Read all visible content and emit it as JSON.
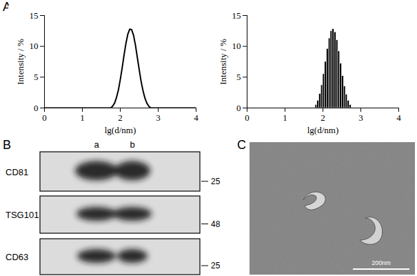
{
  "panel_labels": [
    "A",
    "B",
    "C"
  ],
  "chart_data": [
    {
      "type": "line",
      "xlabel": "lg(d/nm)",
      "ylabel": "Intensity / %",
      "color": "#000000",
      "x": [
        0,
        1.7,
        1.75,
        1.8,
        1.85,
        1.9,
        1.95,
        2.0,
        2.05,
        2.1,
        2.15,
        2.2,
        2.25,
        2.3,
        2.35,
        2.4,
        2.45,
        2.5,
        2.55,
        2.6,
        2.65,
        2.7,
        2.75,
        2.8,
        4
      ],
      "values": [
        0,
        0,
        0,
        0.3,
        0.8,
        1.7,
        2.9,
        4.6,
        6.5,
        8.6,
        10.5,
        12.0,
        12.8,
        12.7,
        11.8,
        10.2,
        8.2,
        6.2,
        4.3,
        2.8,
        1.6,
        0.8,
        0.3,
        0,
        0
      ],
      "xlim": [
        0,
        4
      ],
      "xticks": [
        0,
        1,
        2,
        3,
        4
      ],
      "ylim": [
        0,
        15
      ],
      "yticks": [
        0,
        5,
        10,
        15
      ]
    },
    {
      "type": "histogram",
      "xlabel": "lg(d/nm)",
      "ylabel": "Intensity / %",
      "color": "#000000",
      "bins": [
        1.8,
        1.85,
        1.9,
        1.95,
        2.0,
        2.05,
        2.1,
        2.15,
        2.2,
        2.25,
        2.3,
        2.35,
        2.4,
        2.45,
        2.5,
        2.55,
        2.6,
        2.65,
        2.7,
        2.75
      ],
      "values": [
        0.5,
        1.2,
        2.3,
        3.7,
        5.5,
        7.5,
        9.6,
        11.3,
        12.5,
        12.8,
        12.3,
        11.0,
        9.2,
        7.2,
        5.2,
        3.5,
        2.2,
        1.2,
        0.5
      ],
      "xlim": [
        0,
        4
      ],
      "xticks": [
        0,
        1,
        2,
        3,
        4
      ],
      "ylim": [
        0,
        15
      ],
      "yticks": [
        0,
        5,
        10,
        15
      ]
    }
  ],
  "blot": {
    "lanes": [
      "a",
      "b"
    ],
    "proteins": [
      {
        "name": "CD81",
        "kda": 25
      },
      {
        "name": "TSG101",
        "kda": 48
      },
      {
        "name": "CD63",
        "kda": 25
      }
    ]
  },
  "micrograph": {
    "scale_bar": "200nm"
  }
}
